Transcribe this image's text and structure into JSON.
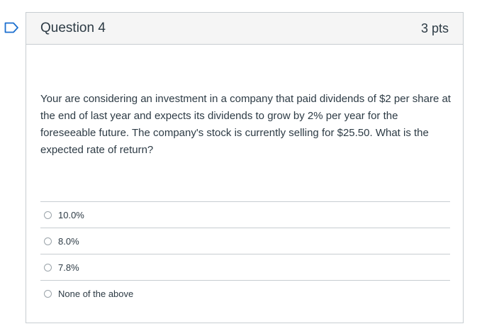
{
  "question": {
    "title": "Question 4",
    "points": "3 pts",
    "text": "Your are considering an investment in a company that paid dividends of $2 per share at the end of last year and expects its dividends to grow by 2% per year for the foreseeable future. The company's stock is currently selling for $25.50. What is the expected rate of return?",
    "answers": [
      {
        "label": "10.0%"
      },
      {
        "label": "8.0%"
      },
      {
        "label": "7.8%"
      },
      {
        "label": "None of the above"
      }
    ]
  },
  "colors": {
    "flag": "#1b6fcf",
    "border": "#c7cdd1",
    "header_bg": "#f5f5f5",
    "text": "#2d3b45"
  },
  "icons": {
    "flag": "flag-question-icon",
    "radio": "radio-unchecked-icon"
  }
}
